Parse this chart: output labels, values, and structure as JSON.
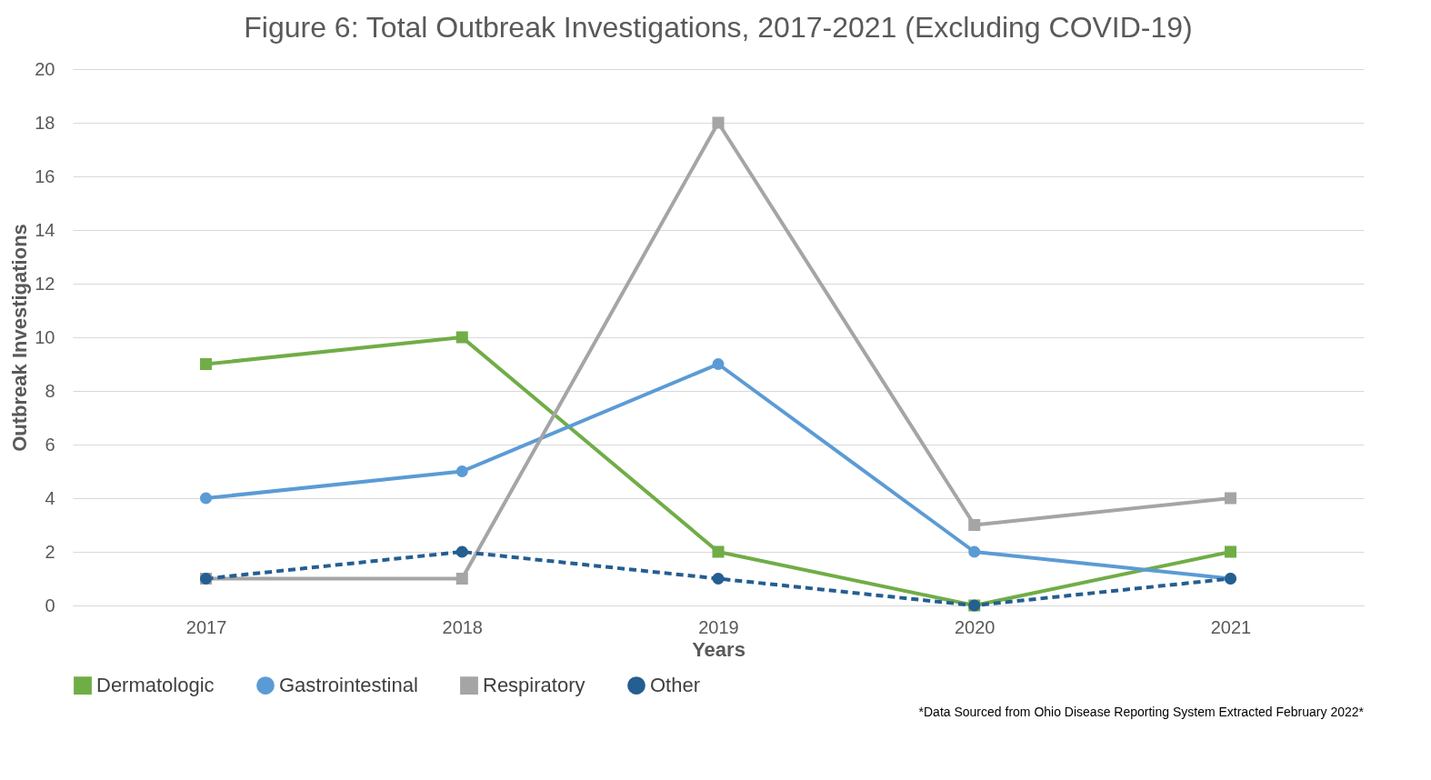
{
  "chart_data": {
    "type": "line",
    "title": "Figure 6: Total Outbreak Investigations, 2017-2021 (Excluding COVID-19)",
    "xlabel": "Years",
    "ylabel": "Outbreak Investigations",
    "categories": [
      "2017",
      "2018",
      "2019",
      "2020",
      "2021"
    ],
    "series": [
      {
        "name": "Dermatologic",
        "color": "#70ad47",
        "marker": "square",
        "line_style": "solid",
        "values": [
          9,
          10,
          2,
          0,
          2
        ]
      },
      {
        "name": "Gastrointestinal",
        "color": "#5b9bd5",
        "marker": "circle",
        "line_style": "solid",
        "values": [
          4,
          5,
          9,
          2,
          1
        ]
      },
      {
        "name": "Respiratory",
        "color": "#a5a5a5",
        "marker": "square",
        "line_style": "solid",
        "values": [
          1,
          1,
          18,
          3,
          4
        ]
      },
      {
        "name": "Other",
        "color": "#255e91",
        "marker": "circle",
        "line_style": "dashed",
        "values": [
          1,
          2,
          1,
          0,
          1
        ]
      }
    ],
    "ylim": [
      0,
      20
    ],
    "yticks": [
      0,
      2,
      4,
      6,
      8,
      10,
      12,
      14,
      16,
      18,
      20
    ],
    "grid": "y",
    "legend": "bottom",
    "annotations": [
      "*Data Sourced from Ohio Disease Reporting System Extracted February 2022*"
    ]
  }
}
